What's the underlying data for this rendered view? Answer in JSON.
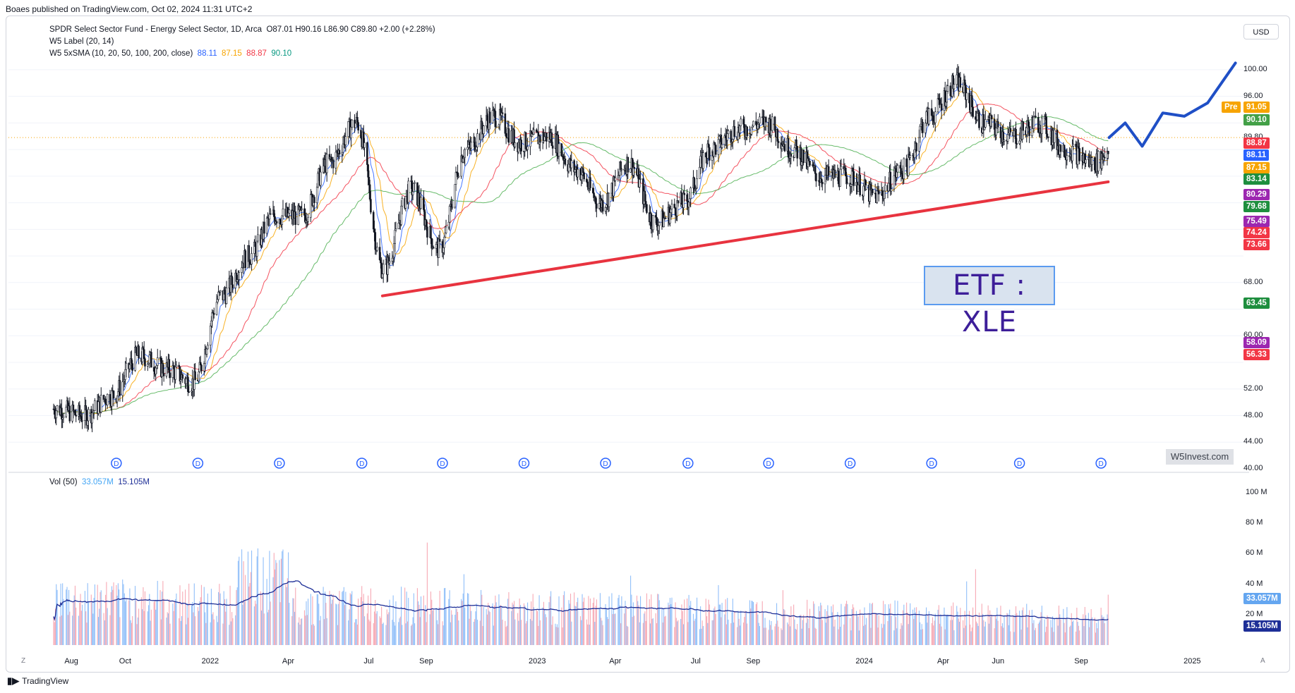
{
  "header": {
    "published": "Boaes published on TradingView.com, Oct 02, 2024 11:31 UTC+2"
  },
  "legend": {
    "symbol_line": "SPDR Select Sector Fund - Energy Select Sector, 1D, Arca",
    "ohlc": "O87.01  H90.16  L86.90  C89.80  +2.00 (+2.28%)",
    "label_line": "W5 Label (20, 14)",
    "sma_line": "W5 5xSMA (10, 20, 50, 100, 200, close)",
    "sma_values": [
      "88.11",
      "87.15",
      "88.87",
      "90.10"
    ]
  },
  "currency": "USD",
  "annotation": "ETF : XLE",
  "watermark": "W5Invest.com",
  "volume_legend": {
    "label": "Vol (50)",
    "values": [
      "33.057M",
      "15.105M"
    ]
  },
  "footer": {
    "brand": "TradingView",
    "scale_mode_left": "Z",
    "scale_mode_right": "A"
  },
  "colors": {
    "sma10": "#2962ff",
    "sma20": "#f7a400",
    "sma50": "#f23645",
    "sma100": "#4caf50",
    "trendline": "#e8333f",
    "projection": "#1f4fc6",
    "annotation_text": "#3d1e99",
    "vol_up": "#90bff9",
    "vol_down": "#f7a9b4",
    "vol_ma": "#1e2f97"
  },
  "chart_data": {
    "type": "candlestick",
    "y_axis_ticks": [
      "100.00",
      "96.00",
      "89.80",
      "68.00",
      "60.00",
      "52.00",
      "48.00",
      "44.00",
      "40.00"
    ],
    "x_axis_ticks": [
      "Aug",
      "Oct",
      "2022",
      "Apr",
      "Jul",
      "Sep",
      "2023",
      "Apr",
      "Jul",
      "Sep",
      "2024",
      "Apr",
      "Jun",
      "Sep",
      "2025"
    ],
    "volume_axis_ticks": [
      "100 M",
      "80 M",
      "60 M",
      "40 M",
      "20 M"
    ],
    "price_labels": [
      {
        "text": "Pre",
        "value": "91.05",
        "color": "#f7a400"
      },
      {
        "text": "",
        "value": "90.10",
        "color": "#43a047"
      },
      {
        "text": "",
        "value": "88.87",
        "color": "#f23645"
      },
      {
        "text": "",
        "value": "88.11",
        "color": "#2962ff"
      },
      {
        "text": "",
        "value": "87.15",
        "color": "#f7a400"
      },
      {
        "text": "",
        "value": "83.14",
        "color": "#1e8e3e"
      },
      {
        "text": "",
        "value": "80.29",
        "color": "#9c27b0"
      },
      {
        "text": "",
        "value": "79.68",
        "color": "#1e8e3e"
      },
      {
        "text": "",
        "value": "75.49",
        "color": "#9c27b0"
      },
      {
        "text": "",
        "value": "74.24",
        "color": "#f23645"
      },
      {
        "text": "",
        "value": "73.66",
        "color": "#f23645"
      },
      {
        "text": "",
        "value": "63.45",
        "color": "#1e8e3e"
      },
      {
        "text": "",
        "value": "58.09",
        "color": "#9c27b0"
      },
      {
        "text": "",
        "value": "56.33",
        "color": "#f23645"
      }
    ],
    "volume_labels": [
      {
        "value": "33.057M",
        "color": "#64a6f0"
      },
      {
        "value": "15.105M",
        "color": "#1e2f97"
      }
    ],
    "dividend_markers": 13,
    "dividend_marker_label": "D",
    "close_series": [
      {
        "date": "2021-07",
        "close": 49
      },
      {
        "date": "2021-08",
        "close": 48
      },
      {
        "date": "2021-09",
        "close": 51
      },
      {
        "date": "2021-10",
        "close": 57
      },
      {
        "date": "2021-11",
        "close": 55
      },
      {
        "date": "2021-12",
        "close": 53
      },
      {
        "date": "2022-01",
        "close": 66
      },
      {
        "date": "2022-02",
        "close": 72
      },
      {
        "date": "2022-03",
        "close": 78
      },
      {
        "date": "2022-04",
        "close": 78
      },
      {
        "date": "2022-05",
        "close": 86
      },
      {
        "date": "2022-06",
        "close": 92
      },
      {
        "date": "2022-07",
        "close": 70
      },
      {
        "date": "2022-08",
        "close": 82
      },
      {
        "date": "2022-09",
        "close": 73
      },
      {
        "date": "2022-10",
        "close": 88
      },
      {
        "date": "2022-11",
        "close": 93
      },
      {
        "date": "2022-12",
        "close": 89
      },
      {
        "date": "2023-01",
        "close": 90
      },
      {
        "date": "2023-02",
        "close": 85
      },
      {
        "date": "2023-03",
        "close": 80
      },
      {
        "date": "2023-04",
        "close": 86
      },
      {
        "date": "2023-05",
        "close": 77
      },
      {
        "date": "2023-06",
        "close": 80
      },
      {
        "date": "2023-07",
        "close": 88
      },
      {
        "date": "2023-08",
        "close": 91
      },
      {
        "date": "2023-09",
        "close": 92
      },
      {
        "date": "2023-10",
        "close": 88
      },
      {
        "date": "2023-11",
        "close": 84
      },
      {
        "date": "2023-12",
        "close": 84
      },
      {
        "date": "2024-01",
        "close": 81
      },
      {
        "date": "2024-02",
        "close": 85
      },
      {
        "date": "2024-03",
        "close": 93
      },
      {
        "date": "2024-04",
        "close": 98
      },
      {
        "date": "2024-05",
        "close": 92
      },
      {
        "date": "2024-06",
        "close": 90
      },
      {
        "date": "2024-07",
        "close": 92
      },
      {
        "date": "2024-08",
        "close": 88
      },
      {
        "date": "2024-09",
        "close": 86
      },
      {
        "date": "2024-10",
        "close": 89.8
      }
    ],
    "trendline": {
      "start": {
        "date": "2022-07-14",
        "price": 66
      },
      "end": {
        "date": "2024-10-01",
        "price": 83.14
      }
    },
    "ylim": [
      40,
      102
    ]
  }
}
